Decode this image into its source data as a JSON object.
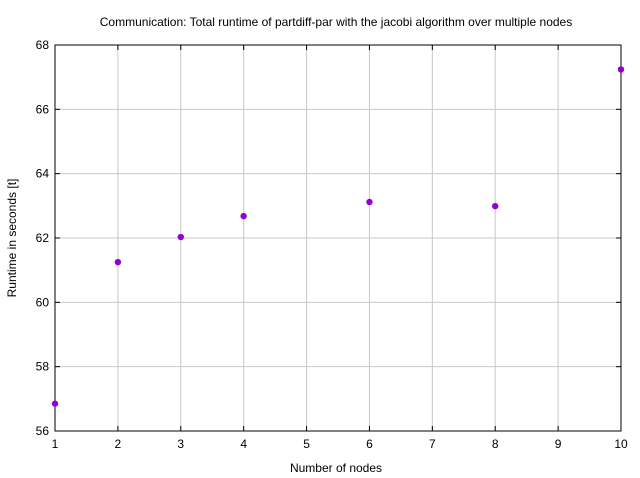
{
  "chart_data": {
    "type": "scatter",
    "title": "Communication: Total runtime of partdiff-par with the jacobi algorithm over multiple nodes",
    "xlabel": "Number of nodes",
    "ylabel": "Runtime in seconds [t]",
    "xlim": [
      1,
      10
    ],
    "ylim": [
      56,
      68
    ],
    "xticks": [
      1,
      2,
      3,
      4,
      5,
      6,
      7,
      8,
      9,
      10
    ],
    "yticks": [
      56,
      58,
      60,
      62,
      64,
      66,
      68
    ],
    "grid": true,
    "legend": "none",
    "point_color": "#9400d3",
    "series": [
      {
        "x": [
          1,
          2,
          3,
          4,
          6,
          8,
          10
        ],
        "y": [
          56.85,
          61.25,
          62.03,
          62.68,
          63.12,
          62.99,
          67.24
        ]
      }
    ]
  }
}
